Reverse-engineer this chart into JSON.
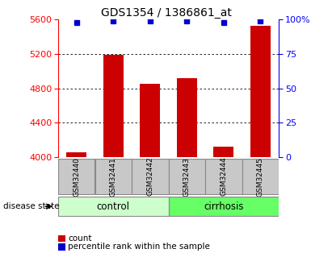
{
  "title": "GDS1354 / 1386861_at",
  "categories": [
    "GSM32440",
    "GSM32441",
    "GSM32442",
    "GSM32443",
    "GSM32444",
    "GSM32445"
  ],
  "bar_values": [
    4052,
    5190,
    4855,
    4920,
    4120,
    5530
  ],
  "percentile_values": [
    98,
    99,
    99,
    99,
    98,
    99
  ],
  "bar_color": "#cc0000",
  "percentile_color": "#0000cc",
  "ylim_left": [
    4000,
    5600
  ],
  "ylim_right": [
    0,
    100
  ],
  "yticks_left": [
    4000,
    4400,
    4800,
    5200,
    5600
  ],
  "yticks_right": [
    0,
    25,
    50,
    75,
    100
  ],
  "grid_values": [
    4400,
    4800,
    5200
  ],
  "bg_color": "#ffffff",
  "label_box_color": "#c8c8c8",
  "label_box_edge": "#888888",
  "control_color": "#ccffcc",
  "cirrhosis_color": "#66ff66",
  "group_label_control": "control",
  "group_label_cirrhosis": "cirrhosis",
  "disease_state_label": "disease state",
  "legend_count_label": "count",
  "legend_percentile_label": "percentile rank within the sample",
  "bar_width": 0.55,
  "title_fontsize": 10,
  "tick_fontsize": 8,
  "label_fontsize": 8
}
